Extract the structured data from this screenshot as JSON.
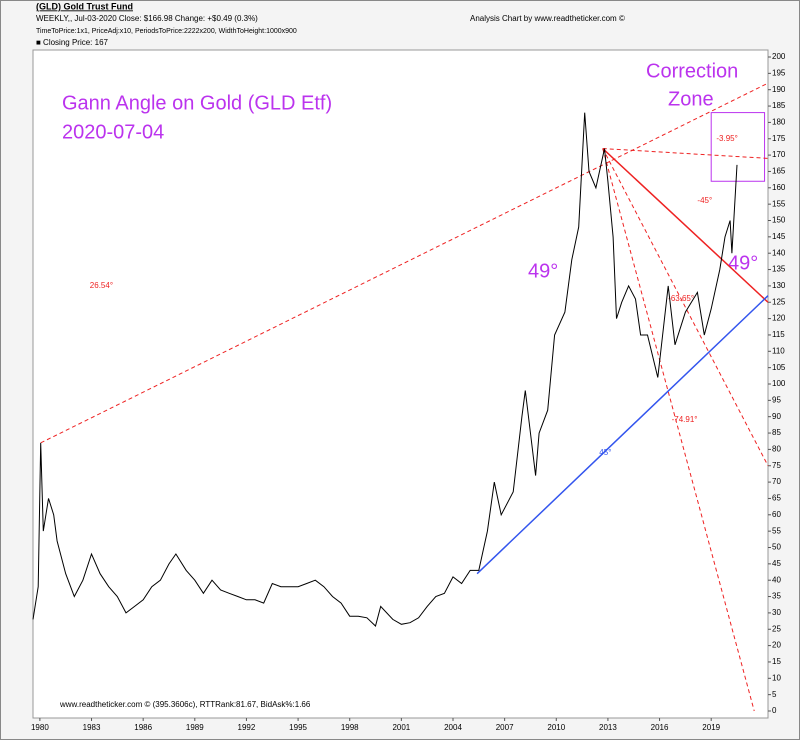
{
  "chart_data": {
    "type": "line",
    "title": "(GLD) Gold Trust Fund",
    "subtitle": "WEEKLY,, Jul-03-2020  Close: $166.98  Change: +$0.49  (0.3%)",
    "credit": "Analysis Chart by www.readtheticker.com ©",
    "settings_text": "TimeToPrice:1x1, PriceAdj:x10, PeriodsToPrice:2222x200, WidthToHeight:1000x900",
    "legend_text": "■ Closing Price: 167",
    "footer": "www.readtheticker.com © (395.3606c), RTTRank:81.67, BidAsk%:1.66",
    "xlim": [
      1979.6,
      2022.3
    ],
    "ylim": [
      0,
      200
    ],
    "xticks": [
      1980,
      1983,
      1986,
      1989,
      1992,
      1995,
      1998,
      2001,
      2004,
      2007,
      2010,
      2013,
      2016,
      2019
    ],
    "yticks": [
      0,
      5,
      10,
      15,
      20,
      25,
      30,
      35,
      40,
      45,
      50,
      55,
      60,
      65,
      70,
      75,
      80,
      85,
      90,
      95,
      100,
      105,
      110,
      115,
      120,
      125,
      130,
      135,
      140,
      145,
      150,
      155,
      160,
      165,
      170,
      175,
      180,
      185,
      190,
      195,
      200
    ],
    "series": [
      {
        "name": "Closing Price",
        "color": "#000000",
        "x": [
          1979.6,
          1979.9,
          1980.05,
          1980.2,
          1980.5,
          1980.8,
          1981.0,
          1981.5,
          1982.0,
          1982.5,
          1983.0,
          1983.5,
          1984.0,
          1984.5,
          1985.0,
          1985.5,
          1986.0,
          1986.5,
          1987.0,
          1987.5,
          1987.9,
          1988.5,
          1989.0,
          1989.5,
          1990.0,
          1990.5,
          1991.0,
          1991.5,
          1992.0,
          1992.5,
          1993.0,
          1993.5,
          1994.0,
          1994.5,
          1995.0,
          1995.5,
          1996.0,
          1996.5,
          1997.0,
          1997.5,
          1998.0,
          1998.5,
          1999.0,
          1999.5,
          1999.8,
          2000.5,
          2001.0,
          2001.5,
          2002.0,
          2002.5,
          2003.0,
          2003.5,
          2004.0,
          2004.5,
          2005.0,
          2005.5,
          2006.0,
          2006.4,
          2006.8,
          2007.5,
          2008.0,
          2008.2,
          2008.8,
          2009.0,
          2009.5,
          2009.9,
          2010.5,
          2010.9,
          2011.3,
          2011.65,
          2011.9,
          2012.3,
          2012.8,
          2013.0,
          2013.3,
          2013.5,
          2013.8,
          2014.2,
          2014.6,
          2014.9,
          2015.3,
          2015.9,
          2016.5,
          2016.9,
          2017.5,
          2018.2,
          2018.6,
          2019.0,
          2019.5,
          2019.8,
          2020.1,
          2020.2,
          2020.5
        ],
        "values": [
          28,
          38,
          82,
          55,
          65,
          60,
          52,
          42,
          35,
          40,
          48,
          42,
          38,
          35,
          30,
          32,
          34,
          38,
          40,
          45,
          48,
          43,
          40,
          36,
          40,
          37,
          36,
          35,
          34,
          34,
          33,
          39,
          38,
          38,
          38,
          39,
          40,
          38,
          35,
          33,
          29,
          29,
          28.5,
          26,
          32,
          28,
          26.5,
          27,
          28.5,
          32,
          35,
          36,
          41,
          39,
          43,
          43,
          55,
          70,
          60,
          67,
          90,
          98,
          72,
          85,
          92,
          115,
          122,
          138,
          148,
          183,
          165,
          160,
          172,
          162,
          145,
          120,
          125,
          130,
          126,
          115,
          115,
          102,
          130,
          112,
          122,
          128,
          115,
          123,
          135,
          145,
          150,
          140,
          167
        ]
      }
    ],
    "annotations": {
      "headline": "Gann Angle on Gold (GLD Etf)",
      "date": "2020-07-04",
      "zone_line1": "Correction",
      "zone_line2": "Zone",
      "angle_left": "49°",
      "angle_right": "49°",
      "zone": {
        "x": [
          2019.0,
          2022.1
        ],
        "y": [
          162,
          183
        ],
        "color": "#bb33ee"
      },
      "lines": [
        {
          "from": [
            1980.05,
            82
          ],
          "to": [
            2022.3,
            192
          ],
          "color": "#ee2222",
          "dash": true,
          "label": "26.54°",
          "at": [
            1982.9,
            130
          ]
        },
        {
          "from": [
            2012.7,
            172
          ],
          "to": [
            2022.3,
            169
          ],
          "color": "#ee2222",
          "dash": true,
          "label": "-3.95°",
          "at": [
            2019.3,
            175
          ]
        },
        {
          "from": [
            2012.7,
            172
          ],
          "to": [
            2022.3,
            125
          ],
          "color": "#ee2222",
          "dash": false,
          "label": "-45°",
          "at": [
            2018.2,
            156
          ]
        },
        {
          "from": [
            2012.7,
            172
          ],
          "to": [
            2022.3,
            75
          ],
          "color": "#ee2222",
          "dash": true,
          "label": "-63.65°",
          "at": [
            2016.5,
            126
          ]
        },
        {
          "from": [
            2012.7,
            172
          ],
          "to": [
            2021.5,
            0
          ],
          "color": "#ee2222",
          "dash": true,
          "label": "-74.91°",
          "at": [
            2016.7,
            89
          ]
        },
        {
          "from": [
            2005.4,
            42
          ],
          "to": [
            2022.3,
            127
          ],
          "color": "#3355ee",
          "dash": false,
          "label": "45°",
          "at": [
            2012.5,
            79
          ]
        }
      ]
    }
  }
}
